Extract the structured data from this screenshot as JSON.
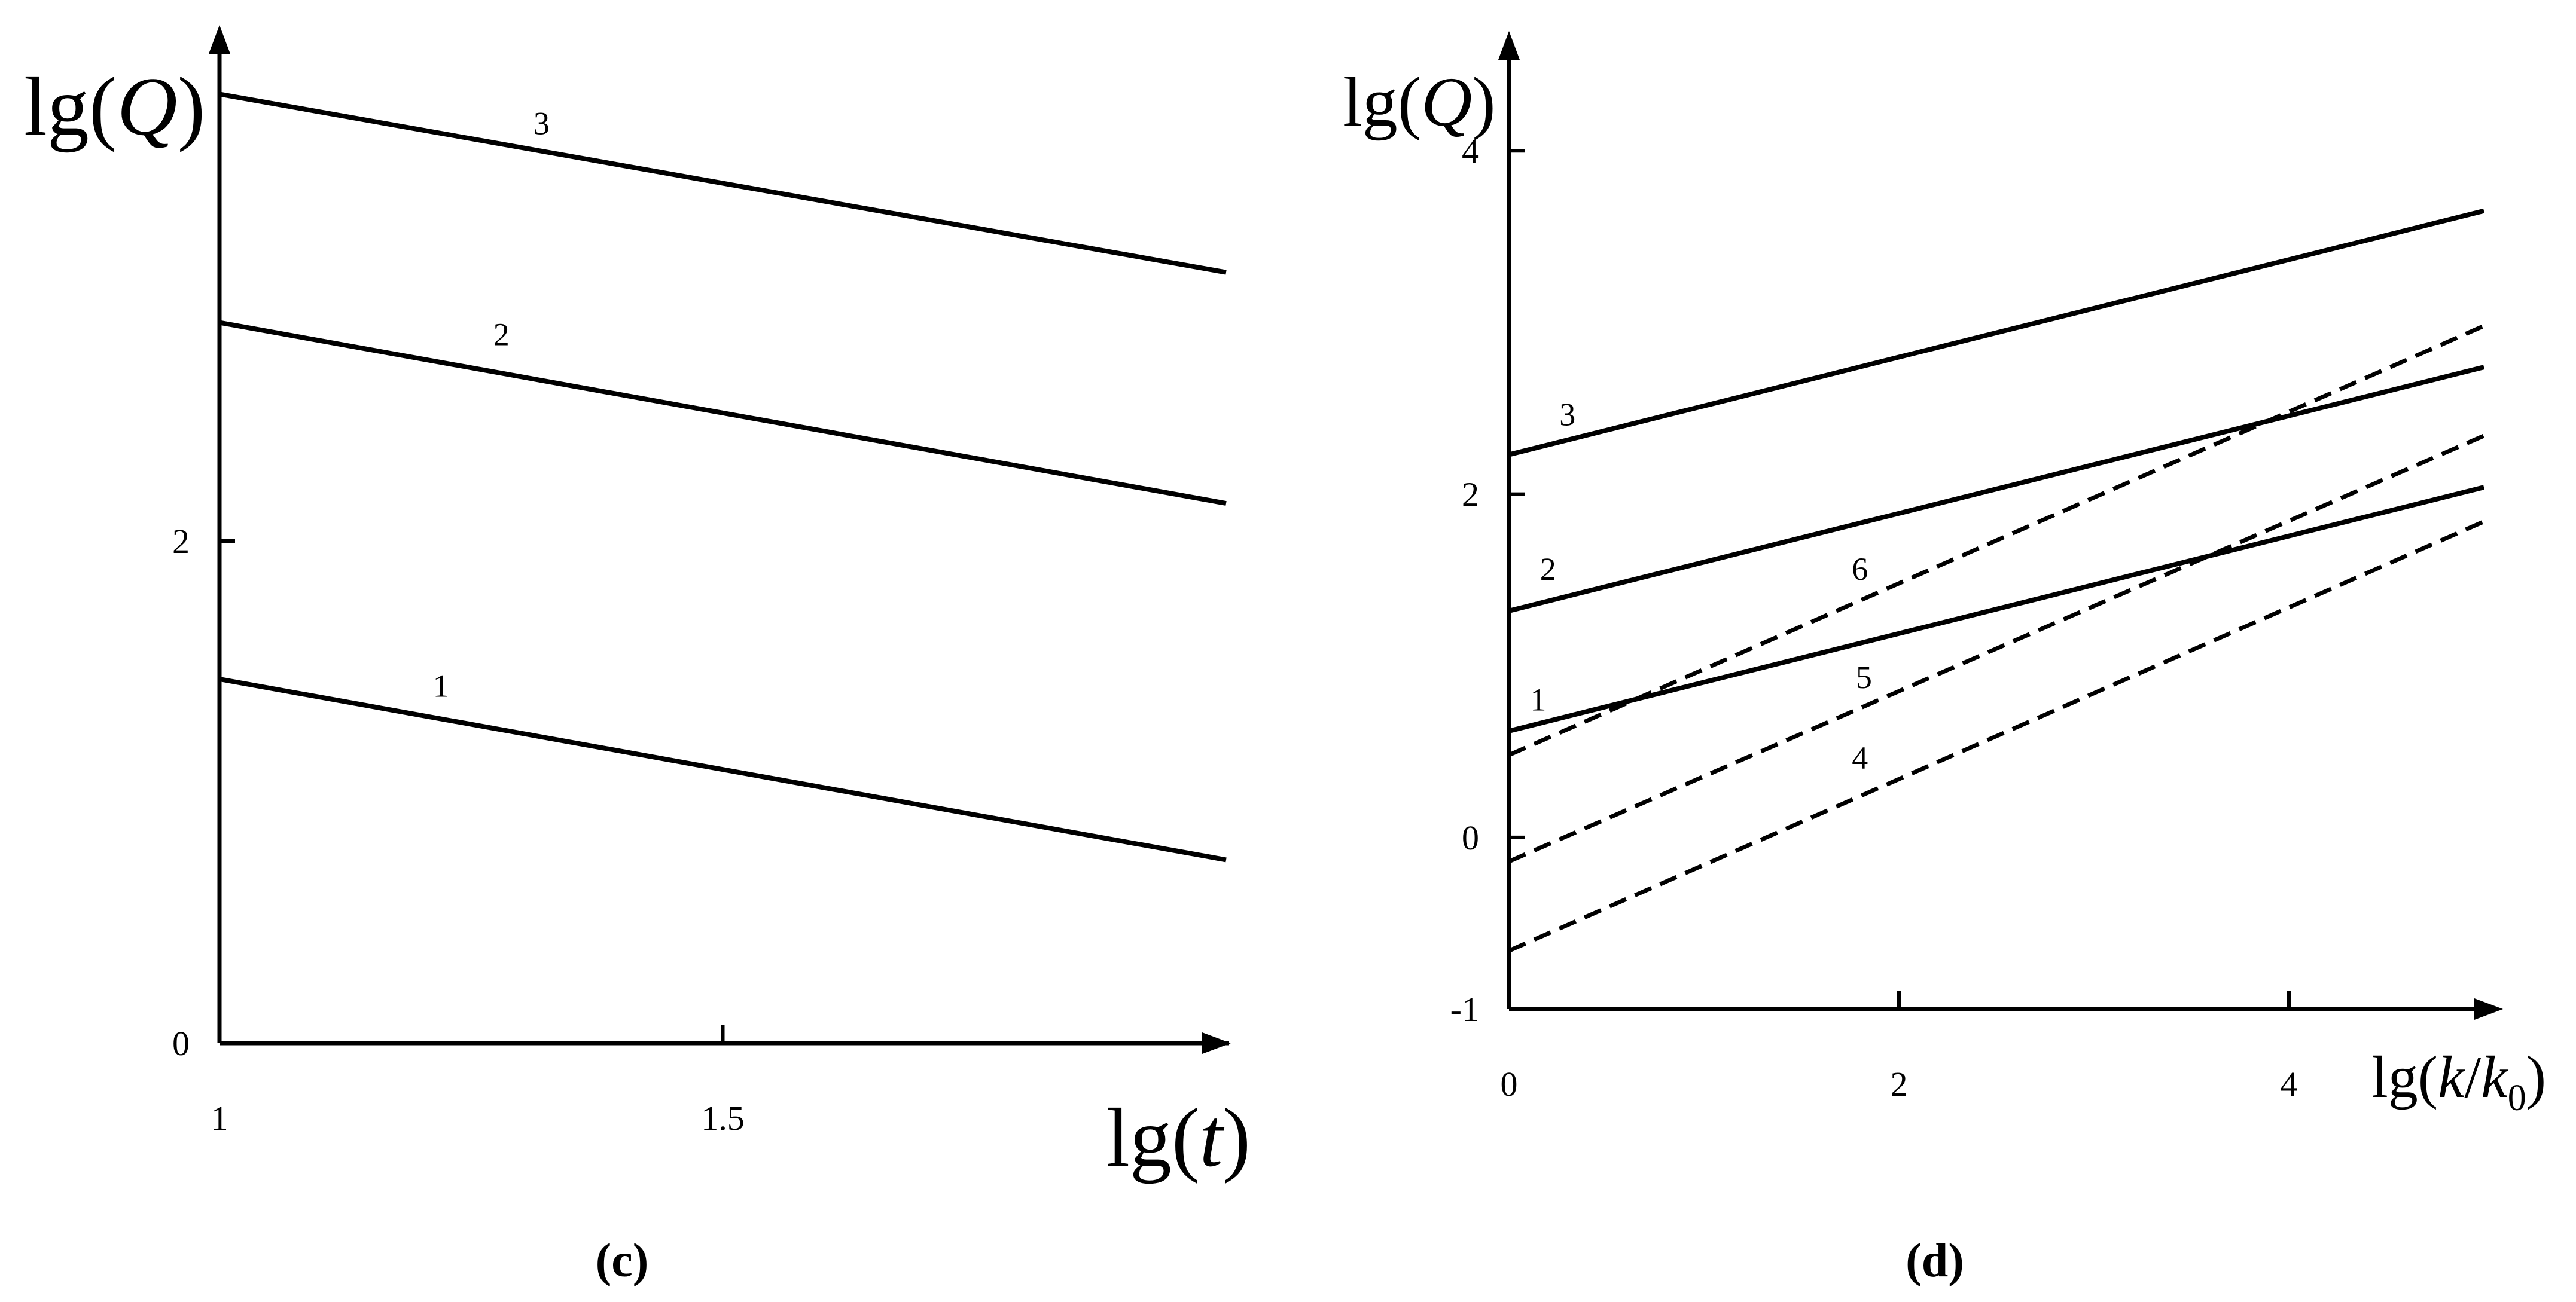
{
  "chart_data": [
    {
      "type": "line",
      "panel_label": "(c)",
      "xlabel": {
        "fn": "lg",
        "open": "(",
        "var": "t",
        "close": ")"
      },
      "ylabel": {
        "fn": "lg",
        "open": "(",
        "var": "Q",
        "close": ")"
      },
      "xlim": [
        1,
        2
      ],
      "ylim": [
        0,
        4
      ],
      "xticks": [
        1,
        1.5
      ],
      "xtick_labels": [
        "1",
        "1.5"
      ],
      "yticks": [
        0,
        2
      ],
      "ytick_labels": [
        "0",
        "2"
      ],
      "series": [
        {
          "label": "1",
          "style": "solid",
          "x": [
            1,
            2
          ],
          "y": [
            1.45,
            0.73
          ],
          "label_pos": [
            1.22,
            1.38
          ]
        },
        {
          "label": "2",
          "style": "solid",
          "x": [
            1,
            2
          ],
          "y": [
            2.87,
            2.15
          ],
          "label_pos": [
            1.28,
            2.78
          ]
        },
        {
          "label": "3",
          "style": "solid",
          "x": [
            1,
            2
          ],
          "y": [
            3.78,
            3.07
          ],
          "label_pos": [
            1.32,
            3.62
          ]
        }
      ]
    },
    {
      "type": "line",
      "panel_label": "(d)",
      "xlabel": {
        "fn": "lg",
        "open": "(",
        "var": "k",
        "slash": "/",
        "var2": "k",
        "sub": "0",
        "close": ")"
      },
      "ylabel": {
        "fn": "lg",
        "open": "(",
        "var": "Q",
        "close": ")"
      },
      "xlim": [
        0,
        5
      ],
      "ylim": [
        -1,
        4.6
      ],
      "xticks": [
        0,
        2,
        4
      ],
      "xtick_labels": [
        "0",
        "2",
        "4"
      ],
      "yticks": [
        -1,
        0,
        2,
        4
      ],
      "ytick_labels": [
        "-1",
        "0",
        "2",
        "4"
      ],
      "series": [
        {
          "label": "1",
          "style": "solid",
          "x": [
            0,
            5
          ],
          "y": [
            0.62,
            2.04
          ],
          "label_pos": [
            0.15,
            0.74
          ]
        },
        {
          "label": "2",
          "style": "solid",
          "x": [
            0,
            5
          ],
          "y": [
            1.32,
            2.74
          ],
          "label_pos": [
            0.2,
            1.5
          ]
        },
        {
          "label": "3",
          "style": "solid",
          "x": [
            0,
            5
          ],
          "y": [
            2.23,
            3.65
          ],
          "label_pos": [
            0.3,
            2.4
          ]
        },
        {
          "label": "4",
          "style": "dashed",
          "x": [
            0,
            5
          ],
          "y": [
            -0.66,
            1.84
          ],
          "label_pos": [
            1.8,
            0.4
          ]
        },
        {
          "label": "5",
          "style": "dashed",
          "x": [
            0,
            5
          ],
          "y": [
            -0.14,
            2.34
          ],
          "label_pos": [
            1.82,
            0.87
          ]
        },
        {
          "label": "6",
          "style": "dashed",
          "x": [
            0,
            5
          ],
          "y": [
            0.48,
            2.98
          ],
          "label_pos": [
            1.8,
            1.5
          ]
        }
      ]
    }
  ]
}
